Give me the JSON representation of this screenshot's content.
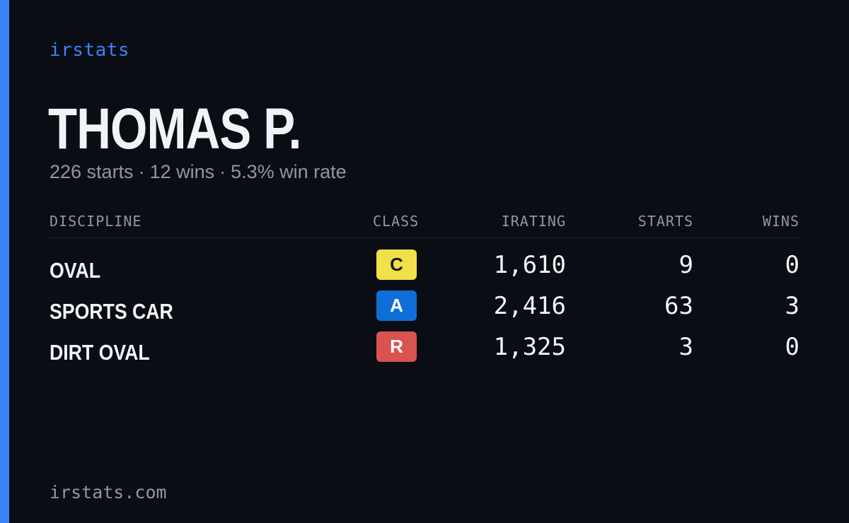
{
  "brand": "irstats",
  "driver": {
    "name": "THOMAS P."
  },
  "summary": {
    "starts": "226 starts",
    "wins": "12 wins",
    "win_rate": "5.3% win rate",
    "separator": "·"
  },
  "table": {
    "headers": {
      "discipline": "DISCIPLINE",
      "class": "CLASS",
      "irating": "IRATING",
      "starts": "STARTS",
      "wins": "WINS"
    },
    "rows": [
      {
        "discipline": "OVAL",
        "class": "C",
        "class_color": "#f0e04a",
        "class_text_color": "#1a1a1a",
        "irating": "1,610",
        "starts": "9",
        "wins": "0"
      },
      {
        "discipline": "SPORTS CAR",
        "class": "A",
        "class_color": "#0f6fd9",
        "class_text_color": "#ffffff",
        "irating": "2,416",
        "starts": "63",
        "wins": "3"
      },
      {
        "discipline": "DIRT OVAL",
        "class": "R",
        "class_color": "#d9534f",
        "class_text_color": "#ffffff",
        "irating": "1,325",
        "starts": "3",
        "wins": "0"
      }
    ]
  },
  "footer": "irstats.com",
  "colors": {
    "accent": "#3b82f6",
    "background": "#0a0d14",
    "text_primary": "#f1f3f7",
    "text_muted": "#8d97a8"
  }
}
